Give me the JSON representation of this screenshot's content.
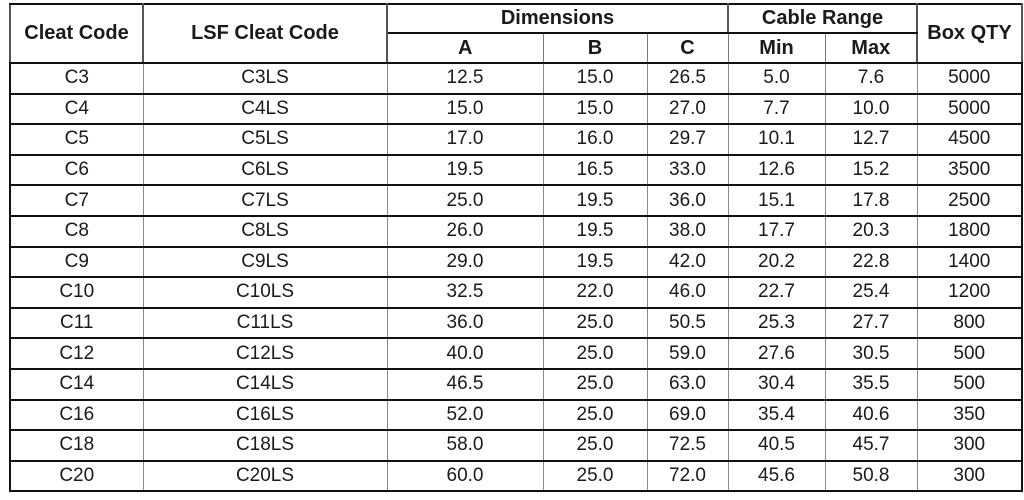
{
  "table": {
    "columns": {
      "cleat_code": "Cleat Code",
      "lsf_cleat_code": "LSF Cleat Code",
      "dimensions": "Dimensions",
      "dim_a": "A",
      "dim_b": "B",
      "dim_c": "C",
      "cable_range": "Cable Range",
      "min": "Min",
      "max": "Max",
      "box_qty": "Box QTY"
    },
    "rows": [
      {
        "cleat_code": "C3",
        "lsf_cleat_code": "C3LS",
        "a": "12.5",
        "b": "15.0",
        "c": "26.5",
        "min": "5.0",
        "max": "7.6",
        "box_qty": "5000"
      },
      {
        "cleat_code": "C4",
        "lsf_cleat_code": "C4LS",
        "a": "15.0",
        "b": "15.0",
        "c": "27.0",
        "min": "7.7",
        "max": "10.0",
        "box_qty": "5000"
      },
      {
        "cleat_code": "C5",
        "lsf_cleat_code": "C5LS",
        "a": "17.0",
        "b": "16.0",
        "c": "29.7",
        "min": "10.1",
        "max": "12.7",
        "box_qty": "4500"
      },
      {
        "cleat_code": "C6",
        "lsf_cleat_code": "C6LS",
        "a": "19.5",
        "b": "16.5",
        "c": "33.0",
        "min": "12.6",
        "max": "15.2",
        "box_qty": "3500"
      },
      {
        "cleat_code": "C7",
        "lsf_cleat_code": "C7LS",
        "a": "25.0",
        "b": "19.5",
        "c": "36.0",
        "min": "15.1",
        "max": "17.8",
        "box_qty": "2500"
      },
      {
        "cleat_code": "C8",
        "lsf_cleat_code": "C8LS",
        "a": "26.0",
        "b": "19.5",
        "c": "38.0",
        "min": "17.7",
        "max": "20.3",
        "box_qty": "1800"
      },
      {
        "cleat_code": "C9",
        "lsf_cleat_code": "C9LS",
        "a": "29.0",
        "b": "19.5",
        "c": "42.0",
        "min": "20.2",
        "max": "22.8",
        "box_qty": "1400"
      },
      {
        "cleat_code": "C10",
        "lsf_cleat_code": "C10LS",
        "a": "32.5",
        "b": "22.0",
        "c": "46.0",
        "min": "22.7",
        "max": "25.4",
        "box_qty": "1200"
      },
      {
        "cleat_code": "C11",
        "lsf_cleat_code": "C11LS",
        "a": "36.0",
        "b": "25.0",
        "c": "50.5",
        "min": "25.3",
        "max": "27.7",
        "box_qty": "800"
      },
      {
        "cleat_code": "C12",
        "lsf_cleat_code": "C12LS",
        "a": "40.0",
        "b": "25.0",
        "c": "59.0",
        "min": "27.6",
        "max": "30.5",
        "box_qty": "500"
      },
      {
        "cleat_code": "C14",
        "lsf_cleat_code": "C14LS",
        "a": "46.5",
        "b": "25.0",
        "c": "63.0",
        "min": "30.4",
        "max": "35.5",
        "box_qty": "500"
      },
      {
        "cleat_code": "C16",
        "lsf_cleat_code": "C16LS",
        "a": "52.0",
        "b": "25.0",
        "c": "69.0",
        "min": "35.4",
        "max": "40.6",
        "box_qty": "350"
      },
      {
        "cleat_code": "C18",
        "lsf_cleat_code": "C18LS",
        "a": "58.0",
        "b": "25.0",
        "c": "72.5",
        "min": "40.5",
        "max": "45.7",
        "box_qty": "300"
      },
      {
        "cleat_code": "C20",
        "lsf_cleat_code": "C20LS",
        "a": "60.0",
        "b": "25.0",
        "c": "72.0",
        "min": "45.6",
        "max": "50.8",
        "box_qty": "300"
      }
    ],
    "column_order": [
      "cleat_code",
      "lsf_cleat_code",
      "a",
      "b",
      "c",
      "min",
      "max",
      "box_qty"
    ]
  },
  "colors": {
    "background": "#ffffff",
    "text": "#1a1a1a",
    "border_dark": "#111111",
    "border_gray": "#8a8a8a"
  }
}
